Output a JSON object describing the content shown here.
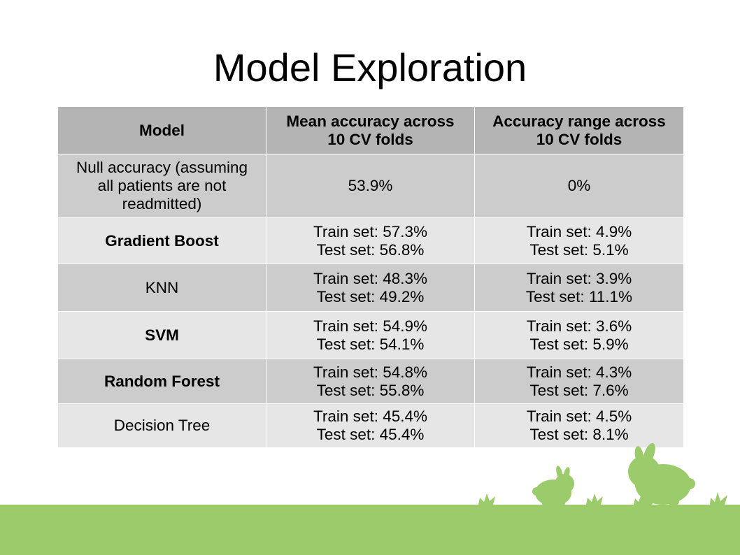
{
  "title": "Model Exploration",
  "table": {
    "headers": [
      {
        "lines": [
          "Model"
        ]
      },
      {
        "lines": [
          "Mean accuracy across",
          "10 CV folds"
        ]
      },
      {
        "lines": [
          "Accuracy range across",
          "10 CV folds"
        ]
      }
    ],
    "rows": [
      {
        "model": [
          "Null accuracy (assuming",
          "all patients are not",
          "readmitted)"
        ],
        "bold": false,
        "mean": [
          "53.9%"
        ],
        "range": [
          "0%"
        ]
      },
      {
        "model": [
          "Gradient Boost"
        ],
        "bold": true,
        "mean": [
          "Train set: 57.3%",
          "Test set: 56.8%"
        ],
        "range": [
          "Train set: 4.9%",
          "Test set: 5.1%"
        ]
      },
      {
        "model": [
          "KNN"
        ],
        "bold": false,
        "mean": [
          "Train set: 48.3%",
          "Test set: 49.2%"
        ],
        "range": [
          "Train set: 3.9%",
          "Test set: 11.1%"
        ]
      },
      {
        "model": [
          "SVM"
        ],
        "bold": true,
        "mean": [
          "Train set: 54.9%",
          "Test set: 54.1%"
        ],
        "range": [
          "Train set: 3.6%",
          "Test set: 5.9%"
        ]
      },
      {
        "model": [
          "Random Forest"
        ],
        "bold": true,
        "mean": [
          "Train set: 54.8%",
          "Test set: 55.8%"
        ],
        "range": [
          "Train set: 4.3%",
          "Test set: 7.6%"
        ]
      },
      {
        "model": [
          "Decision Tree"
        ],
        "bold": false,
        "mean": [
          "Train set: 45.4%",
          "Test set: 45.4%"
        ],
        "range": [
          "Train set: 4.5%",
          "Test set: 8.1%"
        ]
      }
    ]
  },
  "decoration": {
    "grass_color": "#9ccb6b",
    "header_color": "#b4b4b4",
    "row_dark_color": "#cccccc",
    "row_light_color": "#e6e6e6",
    "icons": [
      "small-rabbit-icon",
      "large-rabbit-icon",
      "grass-tuft-icon"
    ]
  }
}
